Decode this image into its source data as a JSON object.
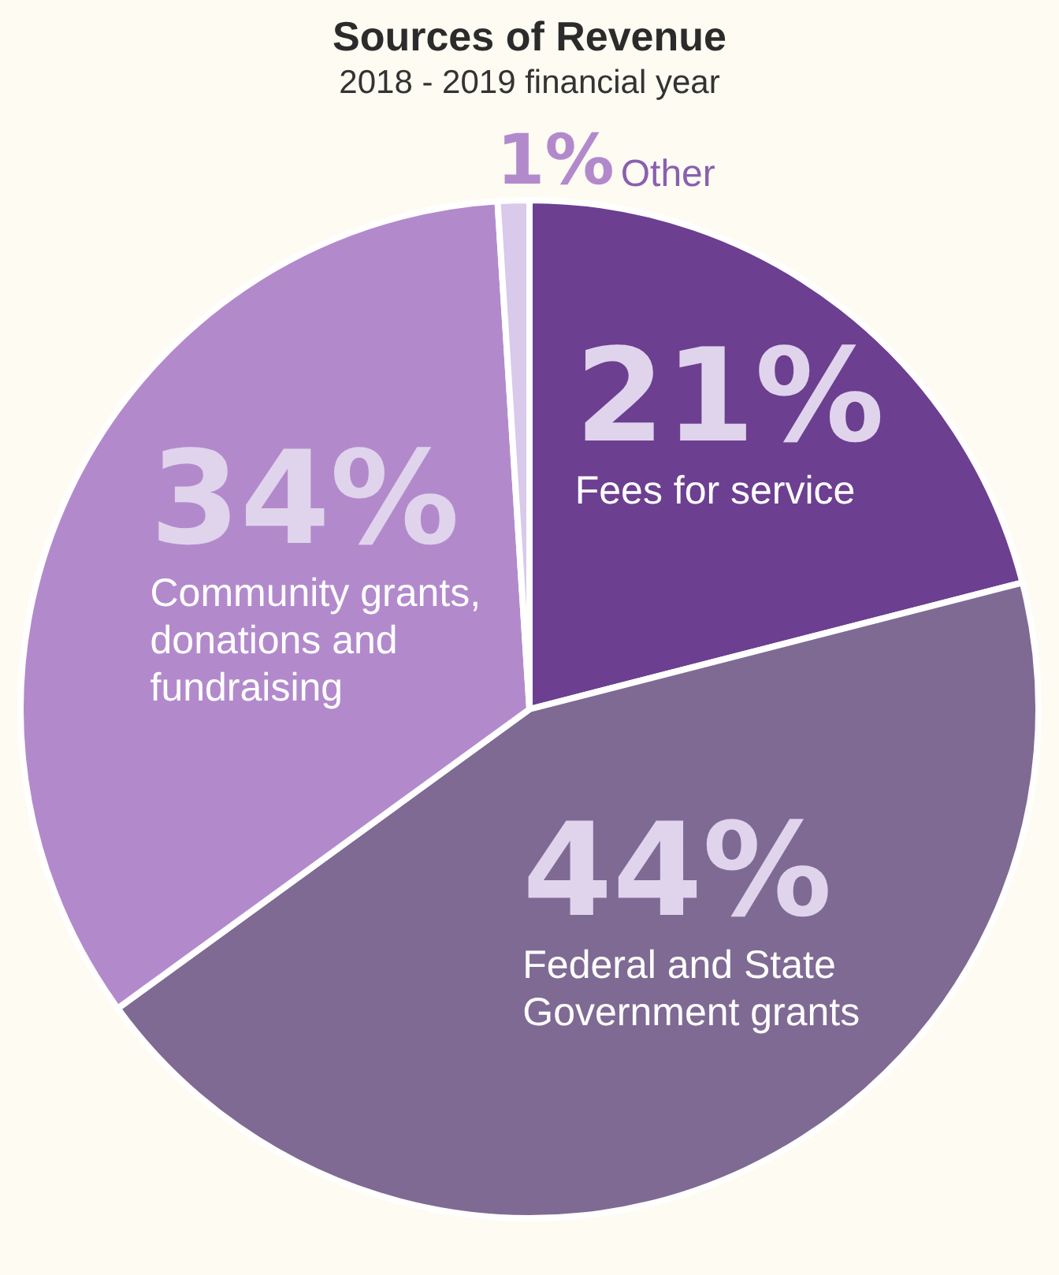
{
  "chart_data": {
    "type": "pie",
    "title": "Sources of Revenue",
    "subtitle": "2018 - 2019 financial year",
    "categories": [
      "Fees for service",
      "Federal and State Government grants",
      "Community grants, donations and fundraising",
      "Other"
    ],
    "values": [
      21,
      44,
      34,
      1
    ],
    "value_labels": [
      "21%",
      "44%",
      "34%",
      "1%"
    ],
    "colors": [
      "#6c3f90",
      "#7f6a94",
      "#b28acc",
      "#d9c9ea"
    ],
    "legend": false
  }
}
